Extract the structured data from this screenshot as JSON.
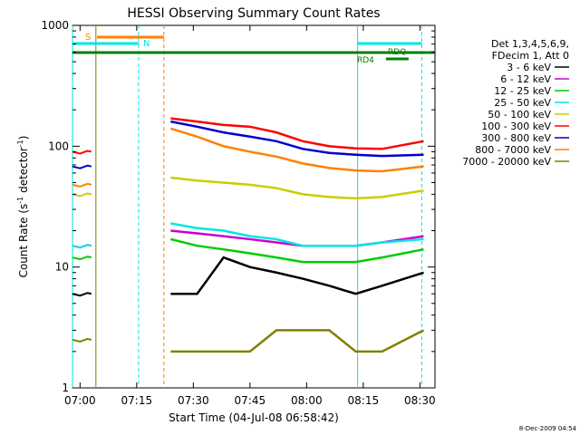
{
  "chart_data": {
    "type": "line",
    "title": "HESSI Observing Summary Count Rates",
    "xlabel": "Start Time (04-Jul-08 06:58:42)",
    "ylabel_main": "Count Rate (s",
    "ylabel_sup1": "-1",
    "ylabel_mid": " detector",
    "ylabel_sup2": "-1",
    "ylabel_end": ")",
    "ylog": true,
    "ylim": [
      1,
      1000
    ],
    "xlim_minutes": [
      0,
      96
    ],
    "xticks": [
      {
        "min": 2,
        "label": "07:00"
      },
      {
        "min": 17,
        "label": "07:15"
      },
      {
        "min": 32,
        "label": "07:30"
      },
      {
        "min": 47,
        "label": "07:45"
      },
      {
        "min": 62,
        "label": "08:00"
      },
      {
        "min": 77,
        "label": "08:15"
      },
      {
        "min": 92,
        "label": "08:30"
      }
    ],
    "yticks": [
      {
        "value": 1,
        "label": "1"
      },
      {
        "value": 10,
        "label": "10"
      },
      {
        "value": 100,
        "label": "100"
      },
      {
        "value": 1000,
        "label": "1000"
      }
    ],
    "legend_header": [
      "Det 1,3,4,5,6,9,",
      "FDecim 1, Att 0"
    ],
    "series": [
      {
        "name": "3 - 6 keV",
        "color": "#000000",
        "values": [
          6,
          6,
          12,
          10,
          9,
          8,
          7,
          6,
          7,
          9
        ],
        "seg1": 6
      },
      {
        "name": "6 - 12 keV",
        "color": "#cc00cc",
        "values": [
          20,
          19,
          18,
          17,
          16,
          15,
          15,
          15,
          16,
          18
        ],
        "seg1": 15
      },
      {
        "name": "12 - 25 keV",
        "color": "#00cc00",
        "values": [
          17,
          15,
          14,
          13,
          12,
          11,
          11,
          11,
          12,
          14
        ],
        "seg1": 12
      },
      {
        "name": "25 - 50 keV",
        "color": "#00e5e5",
        "values": [
          23,
          21,
          20,
          18,
          17,
          15,
          15,
          15,
          16,
          17
        ],
        "seg1": 15
      },
      {
        "name": "50 - 100 keV",
        "color": "#cccc00",
        "values": [
          55,
          52,
          50,
          48,
          45,
          40,
          38,
          37,
          38,
          43
        ],
        "seg1": 40
      },
      {
        "name": "100 - 300 keV",
        "color": "#ff0000",
        "values": [
          170,
          160,
          150,
          145,
          130,
          110,
          100,
          96,
          95,
          110
        ],
        "seg1": 90
      },
      {
        "name": "300 - 800 keV",
        "color": "#0000cc",
        "values": [
          160,
          145,
          130,
          120,
          110,
          95,
          88,
          85,
          83,
          85
        ],
        "seg1": 68
      },
      {
        "name": "800 - 7000 keV",
        "color": "#ff8000",
        "values": [
          140,
          120,
          100,
          90,
          82,
          72,
          66,
          63,
          62,
          68
        ],
        "seg1": 48
      },
      {
        "name": "7000 - 20000 keV",
        "color": "#808000",
        "values": [
          2,
          2,
          2,
          2,
          3,
          3,
          3,
          2,
          2,
          3
        ],
        "seg1": 2.5
      }
    ],
    "x_minutes": [
      26,
      33,
      40,
      47,
      54,
      61,
      68,
      75,
      82,
      93
    ],
    "flags": {
      "S_label": "S",
      "N_label": "N",
      "RDQ_label": "RDQ",
      "RD4_label": "RD4"
    },
    "footer_timestamp": "8-Dec-2009 04:54",
    "colors": {
      "axis": "#000000",
      "saa_line": "#00e5e5",
      "night_line": "#ff8000",
      "flag_green": "#008000",
      "flag_orange": "#ff8000",
      "flag_cyan": "#00e5e5",
      "flare_olive": "#808000"
    }
  }
}
